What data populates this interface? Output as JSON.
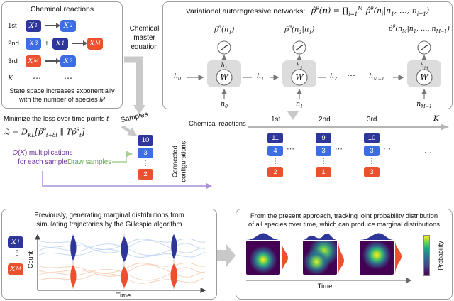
{
  "palette": {
    "navy": "#2f3699",
    "blue": "#3d6de4",
    "orange": "#eb512e",
    "arrow_gray": "#c9c9c9",
    "green": "#6aab4f",
    "purple": "#7030a0",
    "viridis_low": "#440154",
    "viridis_high": "#fde725"
  },
  "reactions_panel": {
    "title": "Chemical reactions",
    "rows": [
      {
        "label": "1st",
        "lhs": [
          {
            "base": "X",
            "sub": "1"
          }
        ],
        "rhs": [
          {
            "base": "X",
            "sub": "2"
          }
        ]
      },
      {
        "label": "2nd",
        "plus": "+",
        "lhs": [
          {
            "base": "X",
            "sub": "3"
          },
          {
            "base": "X",
            "sub": "1"
          }
        ],
        "rhs": [
          {
            "base": "X",
            "sub": "M"
          }
        ]
      },
      {
        "label": "3rd",
        "lhs": [
          {
            "base": "X",
            "sub": "M"
          }
        ],
        "rhs": [
          {
            "base": "X",
            "sub": "2"
          }
        ]
      },
      {
        "label": "K",
        "dots": "⋯"
      }
    ],
    "caption_line1": "State space increases exponentially",
    "caption_line2_html": "with the number of species <i>M</i>"
  },
  "cme": {
    "label": "Chemical master equation"
  },
  "van_panel": {
    "title": "Variational autoregressive networks:",
    "formula_html": "p̂<sup>θ</sup>(<b>n</b>) = ∏<sub>i=1</sub><sup>M</sup> p̂<sup>θ</sup>(n<sub>i</sub>|n<sub>1</sub>, …, n<sub>i−1</sub>)",
    "outputs_html": [
      "p̂<sup>θ</sup>(n<sub>1</sub>)",
      "p̂<sup>θ</sup>(n<sub>2</sub>|n<sub>1</sub>)",
      "p̂<sup>θ</sup>(n<sub>M</sub>|n<sub>1</sub>, …, n<sub>M−1</sub>)"
    ],
    "chain_html": {
      "h0": "h<sub>0</sub>",
      "h1": "h<sub>1</sub>",
      "h2": "h<sub>2</sub>",
      "dots": "⋯",
      "hm1": "h<sub>M−1</sub>"
    },
    "states_html": [
      "h<sub>1</sub>",
      "h<sub>2</sub>",
      "h<sub>M</sub>"
    ],
    "inputs_html": [
      "n<sub>0</sub>",
      "n<sub>1</sub>",
      "n<sub>M−1</sub>"
    ],
    "weight": "W"
  },
  "loss_section": {
    "line1_html": "Minimize the loss over time points <i>t</i>",
    "equation_html": "ℒ = D<sub>KL</sub>[p̂<sup>θ</sup><sub>t+δt</sub> ∥ Tp̂<sup>θ</sup><sub>t</sub>]",
    "purple_line1_html": "<i>O</i>(<i>K</i>) multiplications",
    "purple_line2": "for each sample",
    "draw_samples": "Draw samples",
    "samples_label": "Samples",
    "samples": [
      "10",
      "3",
      "⋮",
      "2"
    ],
    "connected_line1": "Connected",
    "connected_line2": "configurations",
    "axis_title": "Chemical reactions",
    "ticks": [
      "1st",
      "2nd",
      "3rd",
      "K"
    ],
    "columns": [
      {
        "values": [
          "11",
          "4",
          "⋮",
          "2"
        ]
      },
      {
        "values": [
          "9",
          "3",
          "⋮",
          "1"
        ]
      },
      {
        "values": [
          "10",
          "3",
          "⋮",
          "3"
        ]
      }
    ],
    "dots": "⋯"
  },
  "gillespie_panel": {
    "title_line1": "Previously, generating marginal distributions from",
    "title_line2": "simulating trajectories by the Gillespie algorithm",
    "species_top": {
      "base": "X",
      "sub": "1"
    },
    "species_bottom": {
      "base": "X",
      "sub": "M"
    },
    "vdots": "⋮",
    "ylabel": "Count",
    "xlabel": "Time"
  },
  "result_panel": {
    "title_line1": "From the present approach, tracking joint probability distribution",
    "title_line2": "of all species over time, which can produce marginal distributions",
    "xlabel": "Time",
    "colorbar_label": "Probability"
  }
}
